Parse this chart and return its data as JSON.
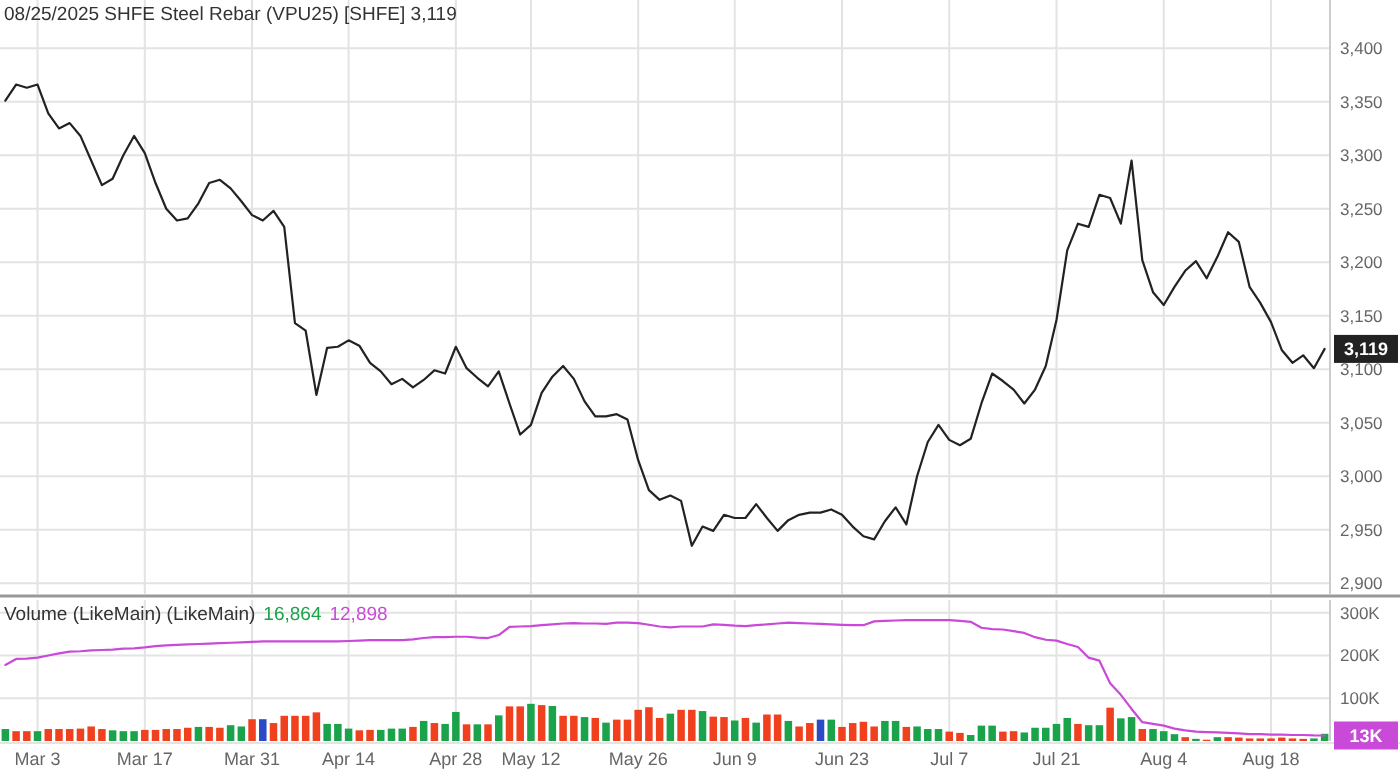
{
  "chart_data": [
    {
      "type": "line",
      "title": "08/25/2025 SHFE Steel Rebar (VPU25) [SHFE] 3,119",
      "categories": [
        null,
        null,
        null,
        "Mar 3",
        null,
        null,
        null,
        null,
        null,
        null,
        null,
        null,
        null,
        "Mar 17",
        null,
        null,
        null,
        null,
        null,
        null,
        null,
        null,
        null,
        "Mar 31",
        null,
        null,
        null,
        null,
        null,
        null,
        null,
        null,
        "Apr 14",
        null,
        null,
        null,
        null,
        null,
        null,
        null,
        null,
        null,
        "Apr 28",
        null,
        null,
        null,
        null,
        null,
        null,
        "May 12",
        null,
        null,
        null,
        null,
        null,
        null,
        null,
        null,
        null,
        "May 26",
        null,
        null,
        null,
        null,
        null,
        null,
        null,
        null,
        "Jun 9",
        null,
        null,
        null,
        null,
        null,
        null,
        null,
        null,
        null,
        "Jun 23",
        null,
        null,
        null,
        null,
        null,
        null,
        null,
        null,
        null,
        "Jul 7",
        null,
        null,
        null,
        null,
        null,
        null,
        null,
        null,
        null,
        "Jul 21",
        null,
        null,
        null,
        null,
        null,
        null,
        null,
        null,
        null,
        "Aug 4",
        null,
        null,
        null,
        null,
        null,
        null,
        null,
        null,
        null,
        "Aug 18",
        null,
        null,
        null,
        null,
        null
      ],
      "series": [
        {
          "color": "#222222",
          "values": [
            3351,
            3366,
            3363,
            3366,
            3339,
            3325,
            3330,
            3318,
            3295,
            3272,
            3278,
            3300,
            3318,
            3302,
            3274,
            3250,
            3239,
            3241,
            3255,
            3274,
            3277,
            3269,
            3257,
            3244,
            3239,
            3248,
            3233,
            3143,
            3136,
            3076,
            3120,
            3121,
            3127,
            3122,
            3106,
            3098,
            3086,
            3091,
            3083,
            3090,
            3099,
            3096,
            3121,
            3101,
            3092,
            3084,
            3098,
            3068,
            3039,
            3048,
            3078,
            3093,
            3103,
            3091,
            3070,
            3056,
            3056,
            3058,
            3053,
            3015,
            2987,
            2978,
            2982,
            2977,
            2935,
            2953,
            2949,
            2964,
            2961,
            2961,
            2974,
            2961,
            2949,
            2959,
            2964,
            2966,
            2966,
            2969,
            2964,
            2953,
            2944,
            2941,
            2958,
            2971,
            2955,
            3000,
            3032,
            3048,
            3034,
            3029,
            3035,
            3068,
            3096,
            3089,
            3081,
            3068,
            3081,
            3103,
            3146,
            3211,
            3236,
            3233,
            3263,
            3260,
            3236,
            3295,
            3202,
            3172,
            3160,
            3177,
            3192,
            3201,
            3185,
            3205,
            3228,
            3219,
            3177,
            3162,
            3144,
            3118,
            3106,
            3113,
            3101,
            3119
          ]
        }
      ],
      "ylim": [
        2890,
        3445
      ],
      "yticks": [
        {
          "value": 2900,
          "label": "2,900"
        },
        {
          "value": 2950,
          "label": "2,950"
        },
        {
          "value": 3000,
          "label": "3,000"
        },
        {
          "value": 3050,
          "label": "3,050"
        },
        {
          "value": 3100,
          "label": "3,100"
        },
        {
          "value": 3150,
          "label": "3,150"
        },
        {
          "value": 3200,
          "label": "3,200"
        },
        {
          "value": 3250,
          "label": "3,250"
        },
        {
          "value": 3300,
          "label": "3,300"
        },
        {
          "value": 3350,
          "label": "3,350"
        },
        {
          "value": 3400,
          "label": "3,400"
        }
      ],
      "annotations": [
        {
          "text": "3,119",
          "y": 3119
        }
      ],
      "grid": true,
      "tick_labels": "y"
    },
    {
      "type": "bar",
      "title": "Volume (LikeMain)  (LikeMain)",
      "categories": [
        null,
        null,
        null,
        "Mar 3",
        null,
        null,
        null,
        null,
        null,
        null,
        null,
        null,
        null,
        "Mar 17",
        null,
        null,
        null,
        null,
        null,
        null,
        null,
        null,
        null,
        "Mar 31",
        null,
        null,
        null,
        null,
        null,
        null,
        null,
        null,
        "Apr 14",
        null,
        null,
        null,
        null,
        null,
        null,
        null,
        null,
        null,
        "Apr 28",
        null,
        null,
        null,
        null,
        null,
        null,
        "May 12",
        null,
        null,
        null,
        null,
        null,
        null,
        null,
        null,
        null,
        "May 26",
        null,
        null,
        null,
        null,
        null,
        null,
        null,
        null,
        "Jun 9",
        null,
        null,
        null,
        null,
        null,
        null,
        null,
        null,
        null,
        "Jun 23",
        null,
        null,
        null,
        null,
        null,
        null,
        null,
        null,
        null,
        "Jul 7",
        null,
        null,
        null,
        null,
        null,
        null,
        null,
        null,
        null,
        "Jul 21",
        null,
        null,
        null,
        null,
        null,
        null,
        null,
        null,
        null,
        "Aug 4",
        null,
        null,
        null,
        null,
        null,
        null,
        null,
        null,
        null,
        "Aug 18",
        null,
        null,
        null,
        null,
        null
      ],
      "series": [
        {
          "type": "bar",
          "color": "#1aa34a",
          "values": [
            28000,
            23000,
            23000,
            23000,
            28000,
            28000,
            28000,
            29000,
            34000,
            28000,
            25000,
            23000,
            23000,
            26000,
            26000,
            28000,
            28000,
            31000,
            33000,
            33000,
            31000,
            37000,
            34000,
            51000,
            51000,
            42000,
            59000,
            59000,
            59000,
            67000,
            40000,
            40000,
            29000,
            25000,
            26000,
            26000,
            29000,
            29000,
            33000,
            47000,
            42000,
            40000,
            68000,
            39000,
            39000,
            39000,
            60000,
            81000,
            81000,
            87000,
            84000,
            82000,
            59000,
            59000,
            56000,
            54000,
            43000,
            50000,
            50000,
            73000,
            79000,
            54000,
            64000,
            73000,
            73000,
            70000,
            57000,
            56000,
            48000,
            54000,
            43000,
            62000,
            62000,
            47000,
            34000,
            42000,
            50000,
            50000,
            33000,
            42000,
            45000,
            34000,
            47000,
            47000,
            33000,
            34000,
            28000,
            28000,
            22000,
            19000,
            14000,
            36000,
            36000,
            22000,
            23000,
            20000,
            31000,
            31000,
            40000,
            54000,
            40000,
            37000,
            37000,
            78000,
            53000,
            56000,
            28000,
            28000,
            23000,
            16000,
            9000,
            5000,
            3000,
            9000,
            9000,
            8000,
            6000,
            6000,
            6000,
            8000,
            6000,
            5000,
            6000,
            16864
          ],
          "colors": [
            "#1aa34a",
            "#f0401e",
            "#f0401e",
            "#1aa34a",
            "#f0401e",
            "#f0401e",
            "#f0401e",
            "#f0401e",
            "#f0401e",
            "#f0401e",
            "#1aa34a",
            "#1aa34a",
            "#1aa34a",
            "#f0401e",
            "#f0401e",
            "#f0401e",
            "#f0401e",
            "#f0401e",
            "#1aa34a",
            "#f0401e",
            "#f0401e",
            "#1aa34a",
            "#1aa34a",
            "#f0401e",
            "#2a4bc4",
            "#f0401e",
            "#f0401e",
            "#f0401e",
            "#f0401e",
            "#f0401e",
            "#1aa34a",
            "#1aa34a",
            "#1aa34a",
            "#f0401e",
            "#f0401e",
            "#1aa34a",
            "#1aa34a",
            "#1aa34a",
            "#f0401e",
            "#1aa34a",
            "#f0401e",
            "#1aa34a",
            "#1aa34a",
            "#f0401e",
            "#1aa34a",
            "#f0401e",
            "#1aa34a",
            "#f0401e",
            "#f0401e",
            "#1aa34a",
            "#f0401e",
            "#1aa34a",
            "#f0401e",
            "#f0401e",
            "#1aa34a",
            "#f0401e",
            "#1aa34a",
            "#f0401e",
            "#f0401e",
            "#f0401e",
            "#f0401e",
            "#f0401e",
            "#1aa34a",
            "#f0401e",
            "#f0401e",
            "#1aa34a",
            "#f0401e",
            "#f0401e",
            "#1aa34a",
            "#f0401e",
            "#1aa34a",
            "#f0401e",
            "#f0401e",
            "#1aa34a",
            "#f0401e",
            "#f0401e",
            "#2a4bc4",
            "#1aa34a",
            "#f0401e",
            "#f0401e",
            "#f0401e",
            "#f0401e",
            "#1aa34a",
            "#1aa34a",
            "#f0401e",
            "#1aa34a",
            "#1aa34a",
            "#1aa34a",
            "#f0401e",
            "#f0401e",
            "#1aa34a",
            "#1aa34a",
            "#1aa34a",
            "#f0401e",
            "#f0401e",
            "#1aa34a",
            "#1aa34a",
            "#1aa34a",
            "#1aa34a",
            "#1aa34a",
            "#f0401e",
            "#1aa34a",
            "#1aa34a",
            "#f0401e",
            "#1aa34a",
            "#1aa34a",
            "#f0401e",
            "#1aa34a",
            "#1aa34a",
            "#1aa34a",
            "#f0401e",
            "#1aa34a",
            "#f0401e",
            "#1aa34a",
            "#f0401e",
            "#f0401e",
            "#f0401e",
            "#f0401e",
            "#f0401e",
            "#f0401e",
            "#f0401e",
            "#f0401e",
            "#1aa34a",
            "#1aa34a"
          ]
        },
        {
          "type": "line",
          "color": "#c94ad8",
          "values": [
            178000,
            192000,
            193000,
            195000,
            200000,
            205000,
            209000,
            210000,
            212000,
            213000,
            214000,
            216000,
            217000,
            219000,
            222000,
            224000,
            225000,
            226000,
            227000,
            228000,
            229000,
            230000,
            231000,
            232000,
            233000,
            233000,
            233000,
            233000,
            233000,
            233000,
            233000,
            233000,
            234000,
            235000,
            236000,
            236000,
            236000,
            236000,
            238000,
            241000,
            243000,
            243000,
            244000,
            244000,
            242000,
            241000,
            248000,
            267000,
            268000,
            269000,
            271000,
            273000,
            275000,
            276000,
            275000,
            275000,
            274000,
            277000,
            277000,
            276000,
            272000,
            268000,
            266000,
            268000,
            268000,
            268000,
            273000,
            272000,
            270000,
            269000,
            271000,
            273000,
            275000,
            277000,
            276000,
            275000,
            274000,
            273000,
            272000,
            271000,
            271000,
            280000,
            281000,
            282000,
            283000,
            283000,
            283000,
            283000,
            283000,
            281000,
            279000,
            265000,
            262000,
            261000,
            257000,
            253000,
            243000,
            237000,
            235000,
            227000,
            220000,
            195000,
            188000,
            135000,
            108000,
            75000,
            44000,
            40000,
            36000,
            29000,
            25000,
            22000,
            21000,
            20000,
            19000,
            18000,
            16000,
            16000,
            15000,
            15000,
            14000,
            14000,
            13000,
            12898
          ]
        }
      ],
      "ylim": [
        0,
        330000
      ],
      "yticks": [
        {
          "value": 100000,
          "label": "100K"
        },
        {
          "value": 200000,
          "label": "200K"
        },
        {
          "value": 300000,
          "label": "300K"
        }
      ],
      "annotations": [
        "16,864",
        "12,898",
        {
          "text": "13K",
          "y": 12898
        }
      ],
      "grid": true
    }
  ]
}
